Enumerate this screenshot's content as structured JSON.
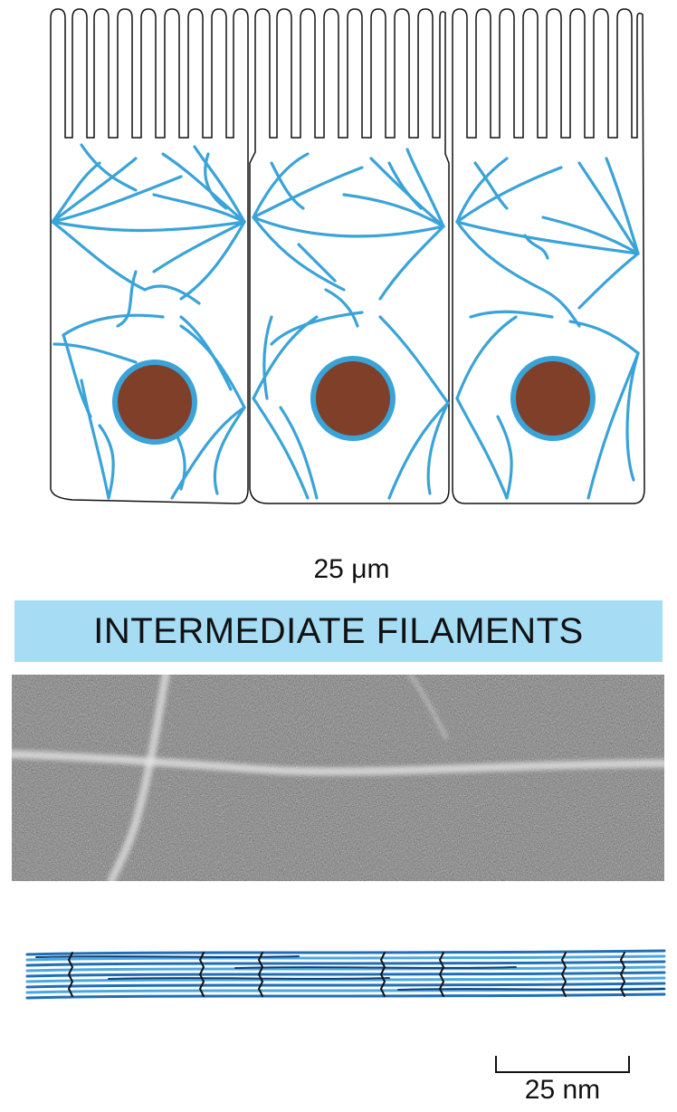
{
  "figure": {
    "scale_bar_cells": "25 μm",
    "title": "INTERMEDIATE FILAMENTS",
    "scale_bar_filament": "25 nm"
  },
  "colors": {
    "filament_blue": "#3aa3d8",
    "nucleus_brown": "#7f3f28",
    "banner_blue": "#a6dcf4",
    "outline": "#111111"
  },
  "icons": {
    "cells": "epithelial-cell-icon",
    "nucleus": "nucleus-icon",
    "micrograph": "electron-micrograph-image",
    "model": "filament-model-icon"
  }
}
